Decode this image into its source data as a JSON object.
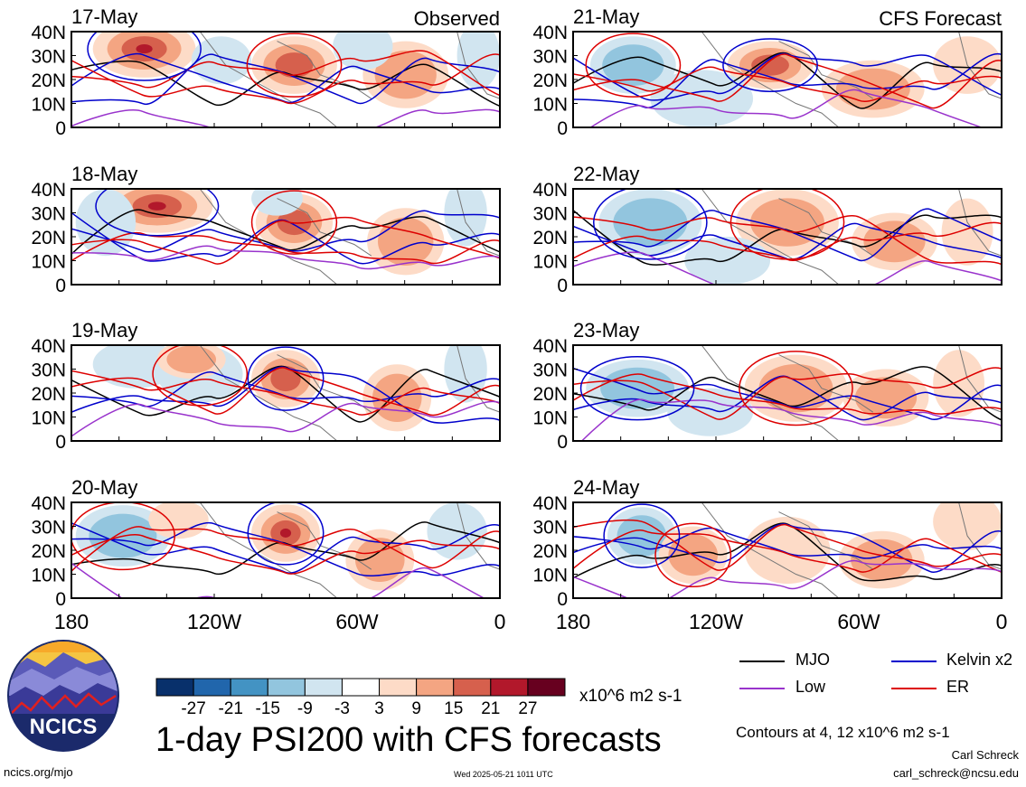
{
  "panels": [
    {
      "date": "17-May",
      "label": "Observed"
    },
    {
      "date": "21-May",
      "label": "CFS Forecast"
    },
    {
      "date": "18-May",
      "label": ""
    },
    {
      "date": "22-May",
      "label": ""
    },
    {
      "date": "19-May",
      "label": ""
    },
    {
      "date": "23-May",
      "label": ""
    },
    {
      "date": "20-May",
      "label": ""
    },
    {
      "date": "24-May",
      "label": ""
    }
  ],
  "lat_ticks": [
    "40N",
    "30N",
    "20N",
    "10N",
    "0"
  ],
  "lon_ticks": [
    "180",
    "120W",
    "60W",
    "0"
  ],
  "colorbar": {
    "tick_labels": [
      "-27",
      "-21",
      "-15",
      "-9",
      "-3",
      "3",
      "9",
      "15",
      "21",
      "27"
    ],
    "colors": [
      "#08306b",
      "#2166ac",
      "#4393c3",
      "#92c5de",
      "#d1e5f0",
      "#ffffff",
      "#fddbc7",
      "#f4a582",
      "#d6604d",
      "#b2182b",
      "#67001f"
    ],
    "units": "x10^6 m2 s-1"
  },
  "legend": [
    {
      "name": "MJO",
      "color": "#000000"
    },
    {
      "name": "Kelvin x2",
      "color": "#0000cc"
    },
    {
      "name": "Low",
      "color": "#9933cc"
    },
    {
      "name": "ER",
      "color": "#dd0000"
    }
  ],
  "title": "1-day PSI200 with CFS forecasts",
  "contours_note": "Contours at 4, 12 x10^6 m2 s-1",
  "logo_text": "NCICS",
  "footer": {
    "url": "ncics.org/mjo",
    "timestamp": "Wed 2025-05-21 1011 UTC",
    "author": "Carl Schreck",
    "email": "carl_schreck@ncsu.edu"
  },
  "chart_data": [
    {
      "type": "heatmap",
      "title": "17-May",
      "subtitle": "Observed",
      "xlabel": "",
      "ylabel": "",
      "xlim": [
        "180",
        "0"
      ],
      "ylim": [
        "0",
        "40N"
      ]
    },
    {
      "type": "heatmap",
      "title": "21-May",
      "subtitle": "CFS Forecast",
      "xlabel": "",
      "ylabel": "",
      "xlim": [
        "180",
        "0"
      ],
      "ylim": [
        "0",
        "40N"
      ]
    },
    {
      "type": "heatmap",
      "title": "18-May",
      "xlim": [
        "180",
        "0"
      ],
      "ylim": [
        "0",
        "40N"
      ]
    },
    {
      "type": "heatmap",
      "title": "22-May",
      "xlim": [
        "180",
        "0"
      ],
      "ylim": [
        "0",
        "40N"
      ]
    },
    {
      "type": "heatmap",
      "title": "19-May",
      "xlim": [
        "180",
        "0"
      ],
      "ylim": [
        "0",
        "40N"
      ]
    },
    {
      "type": "heatmap",
      "title": "23-May",
      "xlim": [
        "180",
        "0"
      ],
      "ylim": [
        "0",
        "40N"
      ]
    },
    {
      "type": "heatmap",
      "title": "20-May",
      "xlim": [
        "180",
        "0"
      ],
      "ylim": [
        "0",
        "40N"
      ]
    },
    {
      "type": "heatmap",
      "title": "24-May",
      "xlim": [
        "180",
        "0"
      ],
      "ylim": [
        "0",
        "40N"
      ]
    }
  ]
}
